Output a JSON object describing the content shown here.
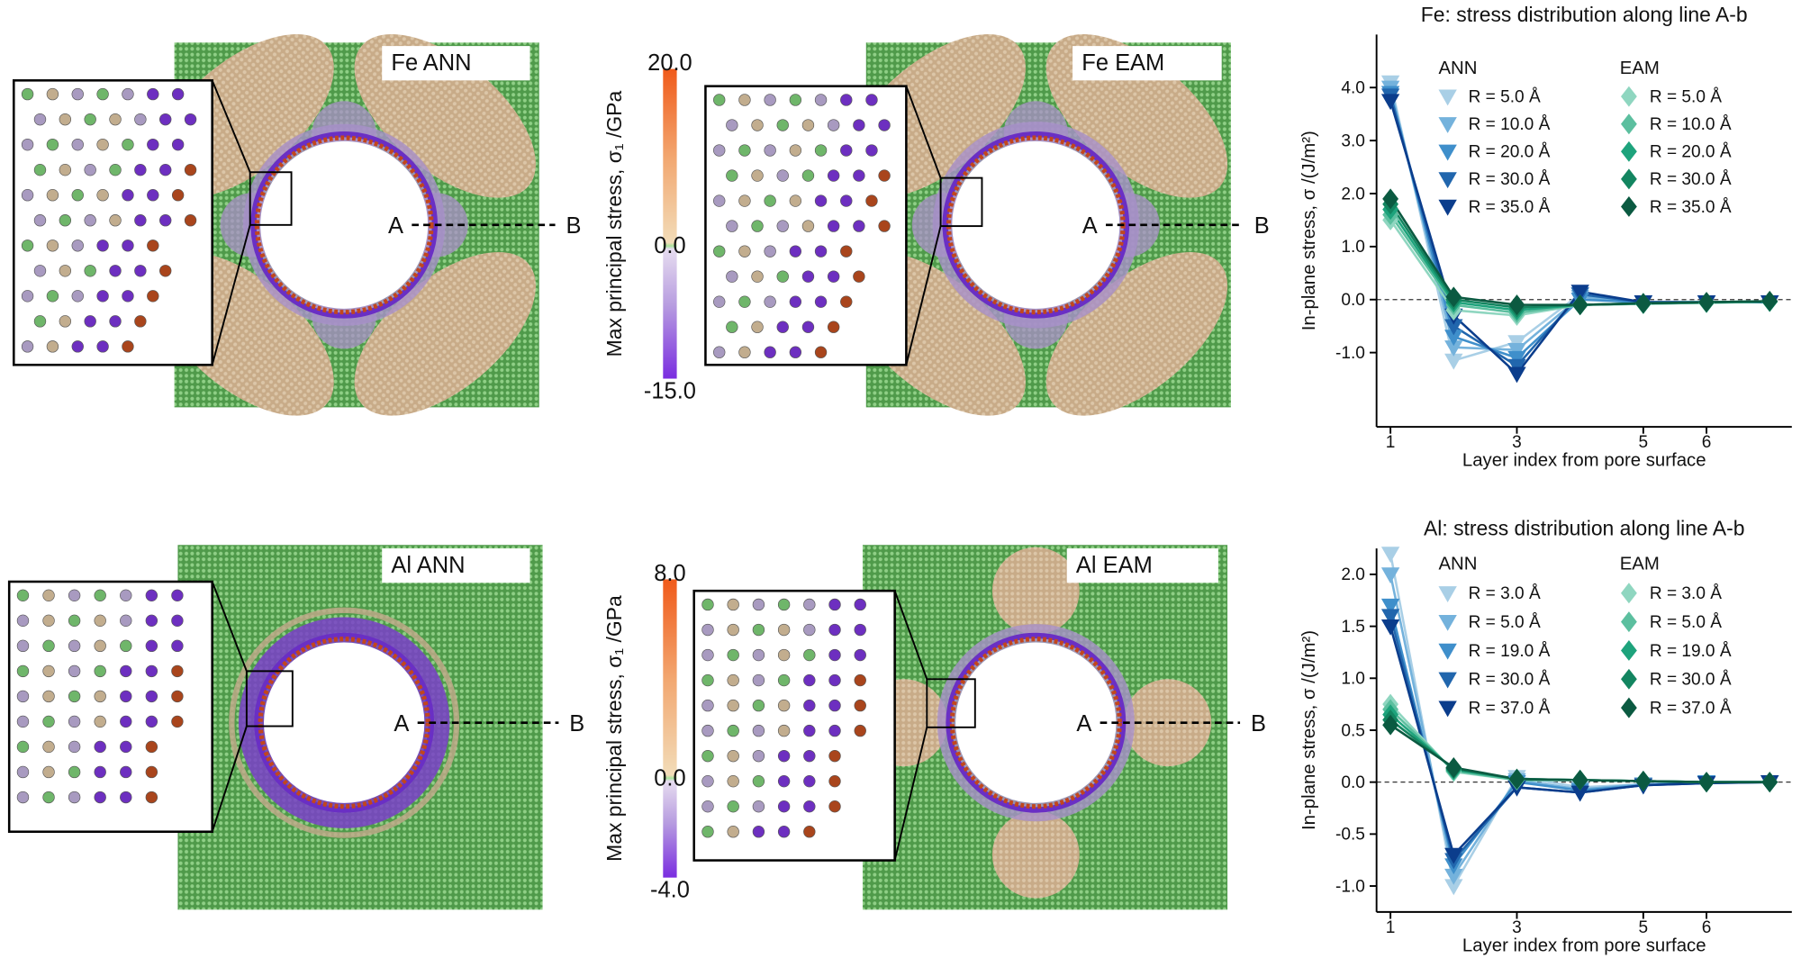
{
  "panels": [
    {
      "label": "Fe ANN",
      "point_a": "A",
      "point_b": "B"
    },
    {
      "label": "Fe EAM",
      "point_a": "A",
      "point_b": "B"
    },
    {
      "label": "Al ANN",
      "point_a": "A",
      "point_b": "B"
    },
    {
      "label": "Al EAM",
      "point_a": "A",
      "point_b": "B"
    }
  ],
  "colorbars": [
    {
      "label": "Max principal stress, σ₁ /GPa",
      "lim": [
        -15,
        20
      ],
      "ticks": [
        {
          "value": 20,
          "label": "20.0"
        },
        {
          "value": 0,
          "label": "0.0"
        },
        {
          "value": -15,
          "label": "-15.0"
        }
      ]
    },
    {
      "label": "Max principal stress, σ₁ /GPa",
      "lim": [
        -4,
        8
      ],
      "ticks": [
        {
          "value": 8,
          "label": "8.0"
        },
        {
          "value": 0,
          "label": "0.0"
        },
        {
          "value": -4,
          "label": "-4.0"
        }
      ]
    }
  ],
  "chart_data": [
    {
      "type": "line",
      "title": "Fe: stress distribution along line A-b",
      "x_label": "Layer index from pore surface",
      "y_label": "In-plane stress, σ /(J/m²)",
      "legend_titles": [
        "ANN",
        "EAM"
      ],
      "legend": "upper right",
      "zero_line": true,
      "x": [
        1,
        2,
        3,
        4,
        5,
        6,
        7
      ],
      "xlim": [
        0.78,
        7.35
      ],
      "xticks": [
        1,
        3,
        5,
        6
      ],
      "ylim": [
        -2.4,
        5.0
      ],
      "yticks": [
        {
          "value": -1,
          "label": "-1.0"
        },
        {
          "value": 0,
          "label": "0.0"
        },
        {
          "value": 1,
          "label": "1.0"
        },
        {
          "value": 2,
          "label": "2.0"
        },
        {
          "value": 3,
          "label": "3.0"
        },
        {
          "value": 4,
          "label": "4.0"
        }
      ],
      "series": [
        {
          "name": "R = 5.0 Å",
          "group": 0,
          "marker": "triangle-down",
          "color": "#a9cfe6",
          "values": [
            4.1,
            -1.15,
            -0.8,
            0.1,
            -0.05,
            -0.05,
            -0.05
          ]
        },
        {
          "name": "R = 10.0 Å",
          "group": 0,
          "marker": "triangle-down",
          "color": "#74b2dc",
          "values": [
            4.0,
            -0.9,
            -0.95,
            0.05,
            -0.05,
            -0.05,
            -0.05
          ]
        },
        {
          "name": "R = 20.0 Å",
          "group": 0,
          "marker": "triangle-down",
          "color": "#3f8fcb",
          "values": [
            3.9,
            -0.7,
            -1.1,
            0.0,
            -0.05,
            -0.05,
            -0.05
          ]
        },
        {
          "name": "R = 30.0 Å",
          "group": 0,
          "marker": "triangle-down",
          "color": "#2166ad",
          "values": [
            3.85,
            -0.5,
            -1.25,
            0.1,
            -0.05,
            -0.05,
            -0.05
          ]
        },
        {
          "name": "R = 35.0 Å",
          "group": 0,
          "marker": "triangle-down",
          "color": "#0b3d8c",
          "values": [
            3.75,
            -0.3,
            -1.4,
            0.15,
            -0.05,
            -0.05,
            -0.05
          ]
        },
        {
          "name": "R = 5.0 Å",
          "group": 1,
          "marker": "diamond",
          "color": "#8fd6c0",
          "values": [
            1.5,
            -0.2,
            -0.3,
            -0.1,
            -0.08,
            -0.06,
            -0.04
          ]
        },
        {
          "name": "R = 10.0 Å",
          "group": 1,
          "marker": "diamond",
          "color": "#5cbf9f",
          "values": [
            1.6,
            -0.1,
            -0.25,
            -0.1,
            -0.08,
            -0.06,
            -0.04
          ]
        },
        {
          "name": "R = 20.0 Å",
          "group": 1,
          "marker": "diamond",
          "color": "#1ea37c",
          "values": [
            1.7,
            -0.05,
            -0.2,
            -0.1,
            -0.07,
            -0.05,
            -0.04
          ]
        },
        {
          "name": "R = 30.0 Å",
          "group": 1,
          "marker": "diamond",
          "color": "#138560",
          "values": [
            1.8,
            0.0,
            -0.15,
            -0.1,
            -0.07,
            -0.05,
            -0.03
          ]
        },
        {
          "name": "R = 35.0 Å",
          "group": 1,
          "marker": "diamond",
          "color": "#0b5a41",
          "values": [
            1.9,
            0.05,
            -0.1,
            -0.1,
            -0.07,
            -0.05,
            -0.03
          ]
        }
      ]
    },
    {
      "type": "line",
      "title": "Al: stress distribution along line A-b",
      "x_label": "Layer index from pore surface",
      "y_label": "In-plane stress, σ /(J/m²)",
      "legend_titles": [
        "ANN",
        "EAM"
      ],
      "legend": "upper right",
      "zero_line": true,
      "x": [
        1,
        2,
        3,
        4,
        5,
        6,
        7
      ],
      "xlim": [
        0.78,
        7.35
      ],
      "xticks": [
        1,
        3,
        5,
        6
      ],
      "ylim": [
        -1.25,
        2.25
      ],
      "yticks": [
        {
          "value": -1,
          "label": "-1.0"
        },
        {
          "value": -0.5,
          "label": "-0.5"
        },
        {
          "value": 0,
          "label": "0.0"
        },
        {
          "value": 0.5,
          "label": "0.5"
        },
        {
          "value": 1,
          "label": "1.0"
        },
        {
          "value": 1.5,
          "label": "1.5"
        },
        {
          "value": 2,
          "label": "2.0"
        }
      ],
      "series": [
        {
          "name": "R = 3.0 Å",
          "group": 0,
          "marker": "triangle-down",
          "color": "#a9cfe6",
          "values": [
            2.2,
            -1.0,
            0.05,
            -0.05,
            -0.02,
            0.0,
            0.0
          ]
        },
        {
          "name": "R = 5.0 Å",
          "group": 0,
          "marker": "triangle-down",
          "color": "#74b2dc",
          "values": [
            2.0,
            -0.9,
            0.02,
            -0.07,
            -0.02,
            0.0,
            0.0
          ]
        },
        {
          "name": "R = 19.0 Å",
          "group": 0,
          "marker": "triangle-down",
          "color": "#3f8fcb",
          "values": [
            1.7,
            -0.8,
            0.0,
            -0.08,
            -0.03,
            0.0,
            0.0
          ]
        },
        {
          "name": "R = 30.0 Å",
          "group": 0,
          "marker": "triangle-down",
          "color": "#2166ad",
          "values": [
            1.6,
            -0.75,
            -0.05,
            -0.1,
            -0.03,
            -0.01,
            0.0
          ]
        },
        {
          "name": "R = 37.0 Å",
          "group": 0,
          "marker": "triangle-down",
          "color": "#0b3d8c",
          "values": [
            1.5,
            -0.7,
            -0.05,
            -0.1,
            -0.03,
            -0.01,
            0.0
          ]
        },
        {
          "name": "R = 3.0 Å",
          "group": 1,
          "marker": "diamond",
          "color": "#8fd6c0",
          "values": [
            0.75,
            0.1,
            0.02,
            0.02,
            0.01,
            0.0,
            0.0
          ]
        },
        {
          "name": "R = 5.0 Å",
          "group": 1,
          "marker": "diamond",
          "color": "#5cbf9f",
          "values": [
            0.7,
            0.11,
            0.02,
            0.02,
            0.01,
            0.0,
            0.0
          ]
        },
        {
          "name": "R = 19.0 Å",
          "group": 1,
          "marker": "diamond",
          "color": "#1ea37c",
          "values": [
            0.65,
            0.12,
            0.03,
            0.02,
            0.01,
            0.0,
            0.0
          ]
        },
        {
          "name": "R = 30.0 Å",
          "group": 1,
          "marker": "diamond",
          "color": "#138560",
          "values": [
            0.6,
            0.13,
            0.03,
            0.02,
            0.01,
            0.0,
            0.0
          ]
        },
        {
          "name": "R = 37.0 Å",
          "group": 1,
          "marker": "diamond",
          "color": "#0b5a41",
          "values": [
            0.55,
            0.14,
            0.03,
            0.02,
            0.01,
            0.0,
            0.0
          ]
        }
      ]
    }
  ]
}
